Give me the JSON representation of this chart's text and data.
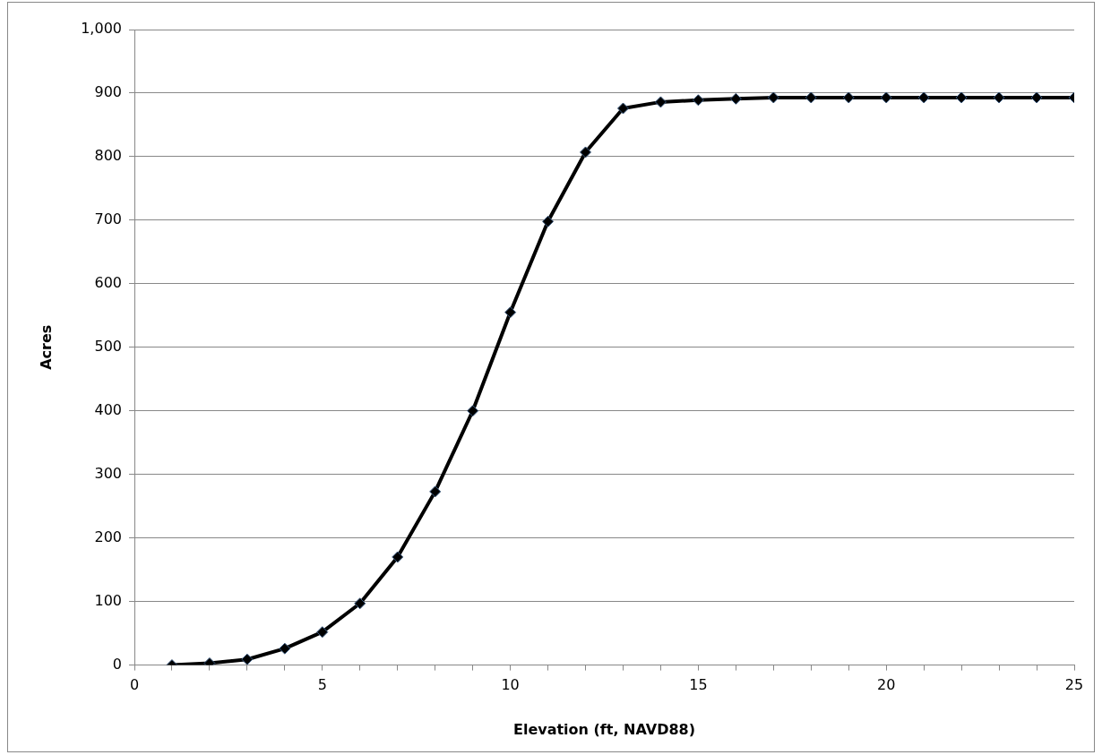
{
  "chart_data": {
    "type": "line",
    "xlabel": "Elevation (ft, NAVD88)",
    "ylabel": "Acres",
    "x": [
      1,
      2,
      3,
      4,
      5,
      6,
      7,
      8,
      9,
      10,
      11,
      12,
      13,
      14,
      15,
      16,
      17,
      18,
      19,
      20,
      21,
      22,
      23,
      24,
      25
    ],
    "series": [
      {
        "color": "#000000",
        "values": [
          0,
          3,
          9,
          26,
          52,
          97,
          170,
          273,
          400,
          555,
          698,
          807,
          876,
          886,
          889,
          891,
          893,
          893,
          893,
          893,
          893,
          893,
          893,
          893,
          893
        ]
      }
    ],
    "xlim": [
      0,
      25
    ],
    "xticks": [
      0,
      {
        "value": 1,
        "label": null
      },
      {
        "value": 2,
        "label": null
      },
      {
        "value": 3,
        "label": null
      },
      {
        "value": 4,
        "label": null
      },
      5,
      {
        "value": 6,
        "label": null
      },
      {
        "value": 7,
        "label": null
      },
      {
        "value": 8,
        "label": null
      },
      {
        "value": 9,
        "label": null
      },
      10,
      {
        "value": 11,
        "label": null
      },
      {
        "value": 12,
        "label": null
      },
      {
        "value": 13,
        "label": null
      },
      {
        "value": 14,
        "label": null
      },
      15,
      {
        "value": 16,
        "label": null
      },
      {
        "value": 17,
        "label": null
      },
      {
        "value": 18,
        "label": null
      },
      {
        "value": 19,
        "label": null
      },
      20,
      {
        "value": 21,
        "label": null
      },
      {
        "value": 22,
        "label": null
      },
      {
        "value": 23,
        "label": null
      },
      {
        "value": 24,
        "label": null
      },
      25
    ],
    "ylim": [
      0,
      1000
    ],
    "yticks": [
      0,
      100,
      200,
      300,
      400,
      500,
      600,
      700,
      800,
      900,
      {
        "value": 1000,
        "label": "1,000"
      }
    ],
    "grid": "y",
    "legend": false,
    "marker": "diamond",
    "line_style": "solid"
  }
}
